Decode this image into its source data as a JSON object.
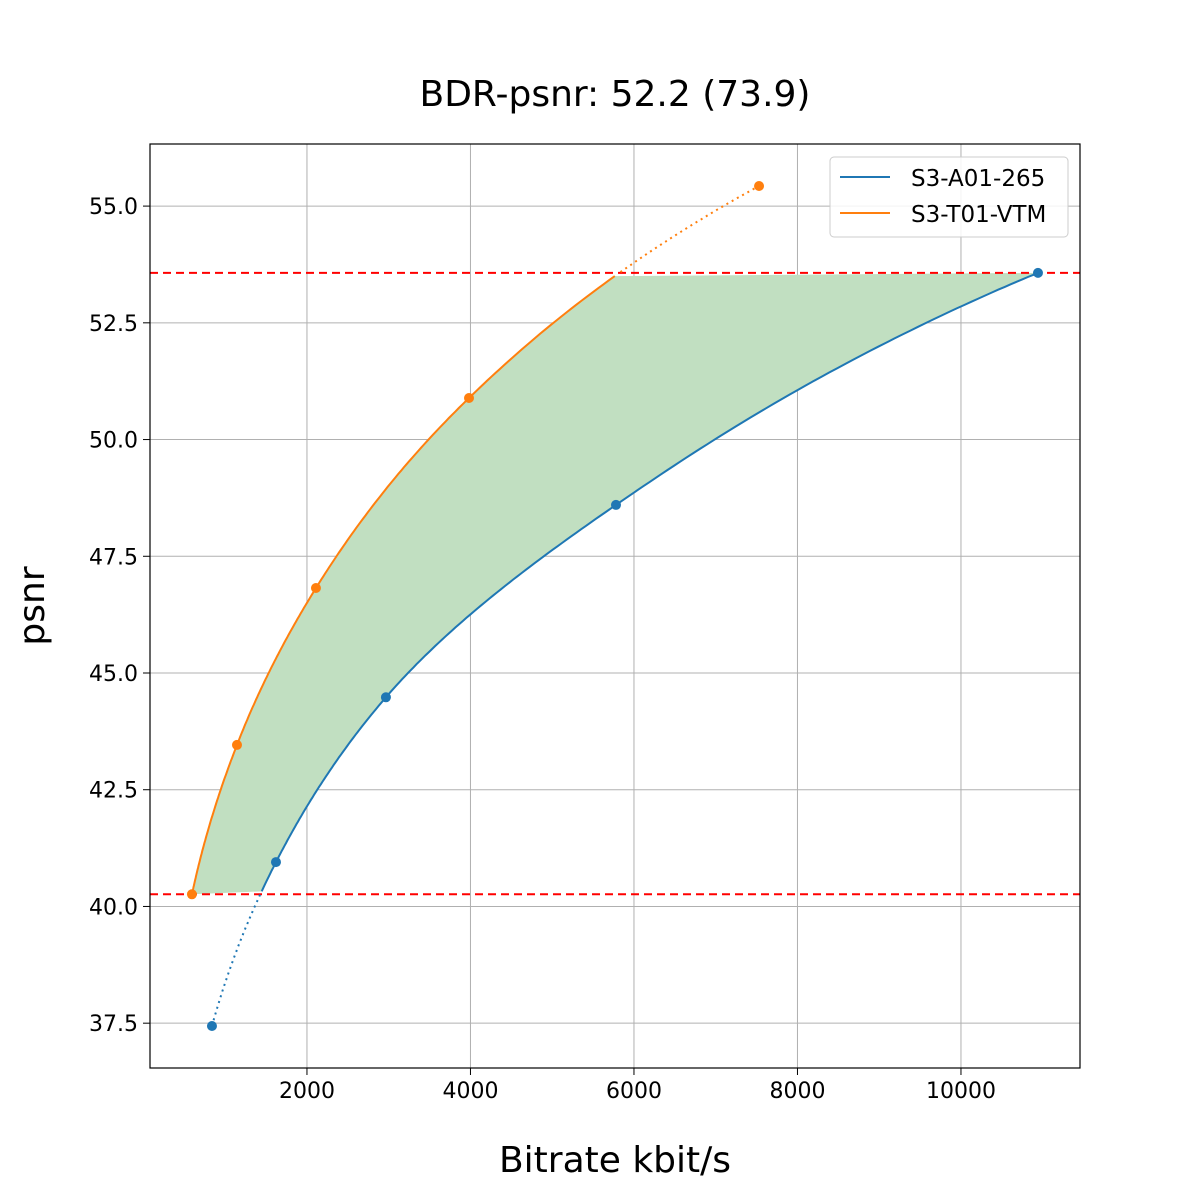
{
  "chart_data": {
    "type": "line",
    "title": "BDR-psnr: 52.2 (73.9)",
    "xlabel": "Bitrate kbit/s",
    "ylabel": "psnr",
    "xlim": [
      80,
      11456
    ],
    "ylim": [
      36.54,
      56.33
    ],
    "xticks": [
      2000,
      4000,
      6000,
      8000,
      10000
    ],
    "yticks": [
      37.5,
      40.0,
      42.5,
      45.0,
      47.5,
      50.0,
      52.5,
      55.0
    ],
    "grid": true,
    "legend_position": "top-right",
    "series": [
      {
        "name": "S3-A01-265",
        "color": "#1f77b4",
        "x": [
          838,
          1621,
          2966,
          5780,
          10942
        ],
        "y": [
          37.44,
          40.95,
          44.48,
          48.6,
          53.57
        ]
      },
      {
        "name": "S3-T01-VTM",
        "color": "#ff7f0e",
        "x": [
          593,
          1144,
          2110,
          3982,
          7530
        ],
        "y": [
          40.26,
          43.46,
          46.82,
          50.89,
          55.43
        ]
      }
    ],
    "reference_lines": {
      "y": [
        40.26,
        53.57
      ],
      "color": "#ff0000",
      "style": "dashed"
    },
    "fill": {
      "between_y": [
        40.26,
        53.57
      ],
      "color": "#c1dfc1"
    }
  }
}
